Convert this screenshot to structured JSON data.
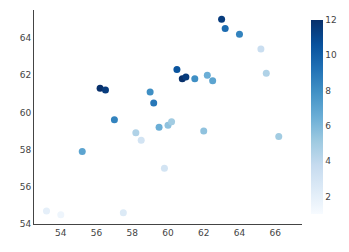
{
  "chart_data": {
    "type": "scatter",
    "x": [
      53.2,
      54.0,
      55.2,
      56.2,
      56.5,
      57.0,
      57.5,
      58.2,
      58.5,
      59.0,
      59.2,
      59.5,
      59.8,
      60.0,
      60.2,
      60.5,
      60.8,
      61.0,
      61.5,
      62.0,
      62.2,
      62.5,
      63.0,
      63.2,
      64.0,
      65.2,
      65.5,
      66.2
    ],
    "values": [
      54.7,
      54.5,
      57.9,
      61.3,
      61.2,
      59.6,
      54.6,
      58.9,
      58.5,
      61.1,
      60.5,
      59.2,
      57.0,
      59.3,
      59.5,
      62.3,
      61.8,
      61.9,
      61.8,
      59.0,
      62.0,
      61.7,
      65.0,
      64.5,
      64.2,
      63.4,
      62.1,
      58.7
    ],
    "color_values": [
      2.0,
      1.5,
      7.0,
      12.0,
      11.5,
      8.5,
      2.5,
      4.5,
      3.0,
      8.0,
      9.0,
      6.5,
      3.0,
      5.5,
      5.0,
      10.5,
      12.0,
      11.5,
      8.0,
      5.5,
      6.5,
      7.0,
      11.5,
      9.5,
      8.5,
      3.5,
      4.5,
      5.0
    ],
    "color": "Blues",
    "color_range": [
      1,
      12
    ],
    "color_ticks": [
      2,
      4,
      6,
      8,
      10,
      12
    ],
    "xlim": [
      52.5,
      67.5
    ],
    "ylim": [
      54.0,
      65.5
    ],
    "xticks": [
      54,
      56,
      58,
      60,
      62,
      64,
      66
    ],
    "yticks": [
      54,
      56,
      58,
      60,
      62,
      64
    ],
    "grid": false
  }
}
